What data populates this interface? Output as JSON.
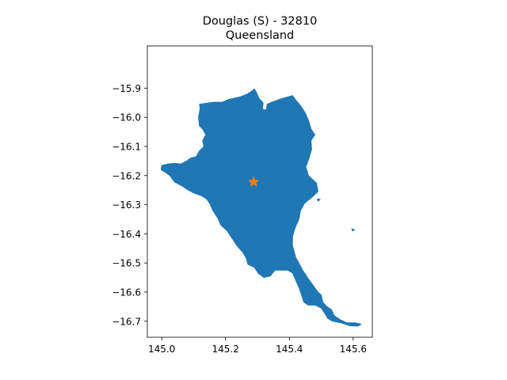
{
  "title": {
    "line1": "Douglas (S) - 32810",
    "line2": "Queensland"
  },
  "colors": {
    "region_fill": "#1f77b4",
    "marker": "#ff7f0e",
    "axes": "#000000",
    "background": "#ffffff"
  },
  "marker_icon": "star",
  "chart_data": {
    "type": "map",
    "title": "Douglas (S) - 32810\nQueensland",
    "xlim": [
      144.955,
      145.66
    ],
    "ylim": [
      -16.755,
      -15.755
    ],
    "x_ticks": [
      145.0,
      145.2,
      145.4,
      145.6
    ],
    "x_tick_labels": [
      "145.0",
      "145.2",
      "145.4",
      "145.6"
    ],
    "y_ticks": [
      -15.9,
      -16.0,
      -16.1,
      -16.2,
      -16.3,
      -16.4,
      -16.5,
      -16.6,
      -16.7
    ],
    "y_tick_labels": [
      "−15.9",
      "−16.0",
      "−16.1",
      "−16.2",
      "−16.3",
      "−16.4",
      "−16.5",
      "−16.6",
      "−16.7"
    ],
    "grid": false,
    "centroid": {
      "lon": 145.288,
      "lat": -16.222
    },
    "region_outline": [
      [
        145.118,
        -15.955
      ],
      [
        145.163,
        -15.948
      ],
      [
        145.19,
        -15.948
      ],
      [
        145.212,
        -15.938
      ],
      [
        145.245,
        -15.93
      ],
      [
        145.268,
        -15.92
      ],
      [
        145.285,
        -15.908
      ],
      [
        145.29,
        -15.902
      ],
      [
        145.296,
        -15.912
      ],
      [
        145.305,
        -15.935
      ],
      [
        145.318,
        -15.95
      ],
      [
        145.316,
        -15.972
      ],
      [
        145.328,
        -15.975
      ],
      [
        145.33,
        -15.955
      ],
      [
        145.345,
        -15.948
      ],
      [
        145.37,
        -15.938
      ],
      [
        145.395,
        -15.93
      ],
      [
        145.41,
        -15.925
      ],
      [
        145.42,
        -15.94
      ],
      [
        145.435,
        -15.96
      ],
      [
        145.45,
        -15.985
      ],
      [
        145.46,
        -16.01
      ],
      [
        145.468,
        -16.04
      ],
      [
        145.48,
        -16.06
      ],
      [
        145.468,
        -16.08
      ],
      [
        145.47,
        -16.11
      ],
      [
        145.462,
        -16.14
      ],
      [
        145.452,
        -16.17
      ],
      [
        145.46,
        -16.2
      ],
      [
        145.485,
        -16.225
      ],
      [
        145.49,
        -16.255
      ],
      [
        145.47,
        -16.275
      ],
      [
        145.448,
        -16.295
      ],
      [
        145.435,
        -16.32
      ],
      [
        145.43,
        -16.35
      ],
      [
        145.418,
        -16.38
      ],
      [
        145.41,
        -16.41
      ],
      [
        145.41,
        -16.44
      ],
      [
        145.42,
        -16.48
      ],
      [
        145.442,
        -16.525
      ],
      [
        145.46,
        -16.555
      ],
      [
        145.48,
        -16.585
      ],
      [
        145.49,
        -16.6
      ],
      [
        145.5,
        -16.61
      ],
      [
        145.505,
        -16.635
      ],
      [
        145.518,
        -16.65
      ],
      [
        145.532,
        -16.66
      ],
      [
        145.54,
        -16.68
      ],
      [
        145.56,
        -16.695
      ],
      [
        145.58,
        -16.705
      ],
      [
        145.605,
        -16.705
      ],
      [
        145.625,
        -16.71
      ],
      [
        145.615,
        -16.717
      ],
      [
        145.59,
        -16.716
      ],
      [
        145.56,
        -16.705
      ],
      [
        145.535,
        -16.7
      ],
      [
        145.52,
        -16.69
      ],
      [
        145.512,
        -16.675
      ],
      [
        145.5,
        -16.655
      ],
      [
        145.482,
        -16.645
      ],
      [
        145.46,
        -16.645
      ],
      [
        145.445,
        -16.635
      ],
      [
        145.438,
        -16.61
      ],
      [
        145.43,
        -16.585
      ],
      [
        145.42,
        -16.56
      ],
      [
        145.41,
        -16.535
      ],
      [
        145.395,
        -16.525
      ],
      [
        145.37,
        -16.525
      ],
      [
        145.355,
        -16.525
      ],
      [
        145.34,
        -16.545
      ],
      [
        145.32,
        -16.55
      ],
      [
        145.302,
        -16.535
      ],
      [
        145.29,
        -16.515
      ],
      [
        145.27,
        -16.505
      ],
      [
        145.265,
        -16.485
      ],
      [
        145.255,
        -16.465
      ],
      [
        145.235,
        -16.44
      ],
      [
        145.22,
        -16.415
      ],
      [
        145.205,
        -16.39
      ],
      [
        145.185,
        -16.37
      ],
      [
        145.175,
        -16.345
      ],
      [
        145.16,
        -16.32
      ],
      [
        145.15,
        -16.295
      ],
      [
        145.14,
        -16.28
      ],
      [
        145.125,
        -16.27
      ],
      [
        145.1,
        -16.26
      ],
      [
        145.08,
        -16.248
      ],
      [
        145.062,
        -16.235
      ],
      [
        145.04,
        -16.222
      ],
      [
        145.025,
        -16.2
      ],
      [
        145.012,
        -16.19
      ],
      [
        144.998,
        -16.18
      ],
      [
        145.0,
        -16.165
      ],
      [
        145.02,
        -16.16
      ],
      [
        145.04,
        -16.158
      ],
      [
        145.06,
        -16.16
      ],
      [
        145.078,
        -16.15
      ],
      [
        145.09,
        -16.14
      ],
      [
        145.108,
        -16.135
      ],
      [
        145.118,
        -16.115
      ],
      [
        145.132,
        -16.1
      ],
      [
        145.128,
        -16.08
      ],
      [
        145.138,
        -16.06
      ],
      [
        145.128,
        -16.04
      ],
      [
        145.118,
        -16.03
      ],
      [
        145.115,
        -16.0
      ],
      [
        145.12,
        -15.97
      ]
    ],
    "small_islands": [
      [
        [
          145.488,
          -16.28
        ],
        [
          145.496,
          -16.282
        ],
        [
          145.49,
          -16.288
        ]
      ],
      [
        [
          145.596,
          -16.383
        ],
        [
          145.604,
          -16.386
        ],
        [
          145.598,
          -16.39
        ]
      ]
    ]
  }
}
